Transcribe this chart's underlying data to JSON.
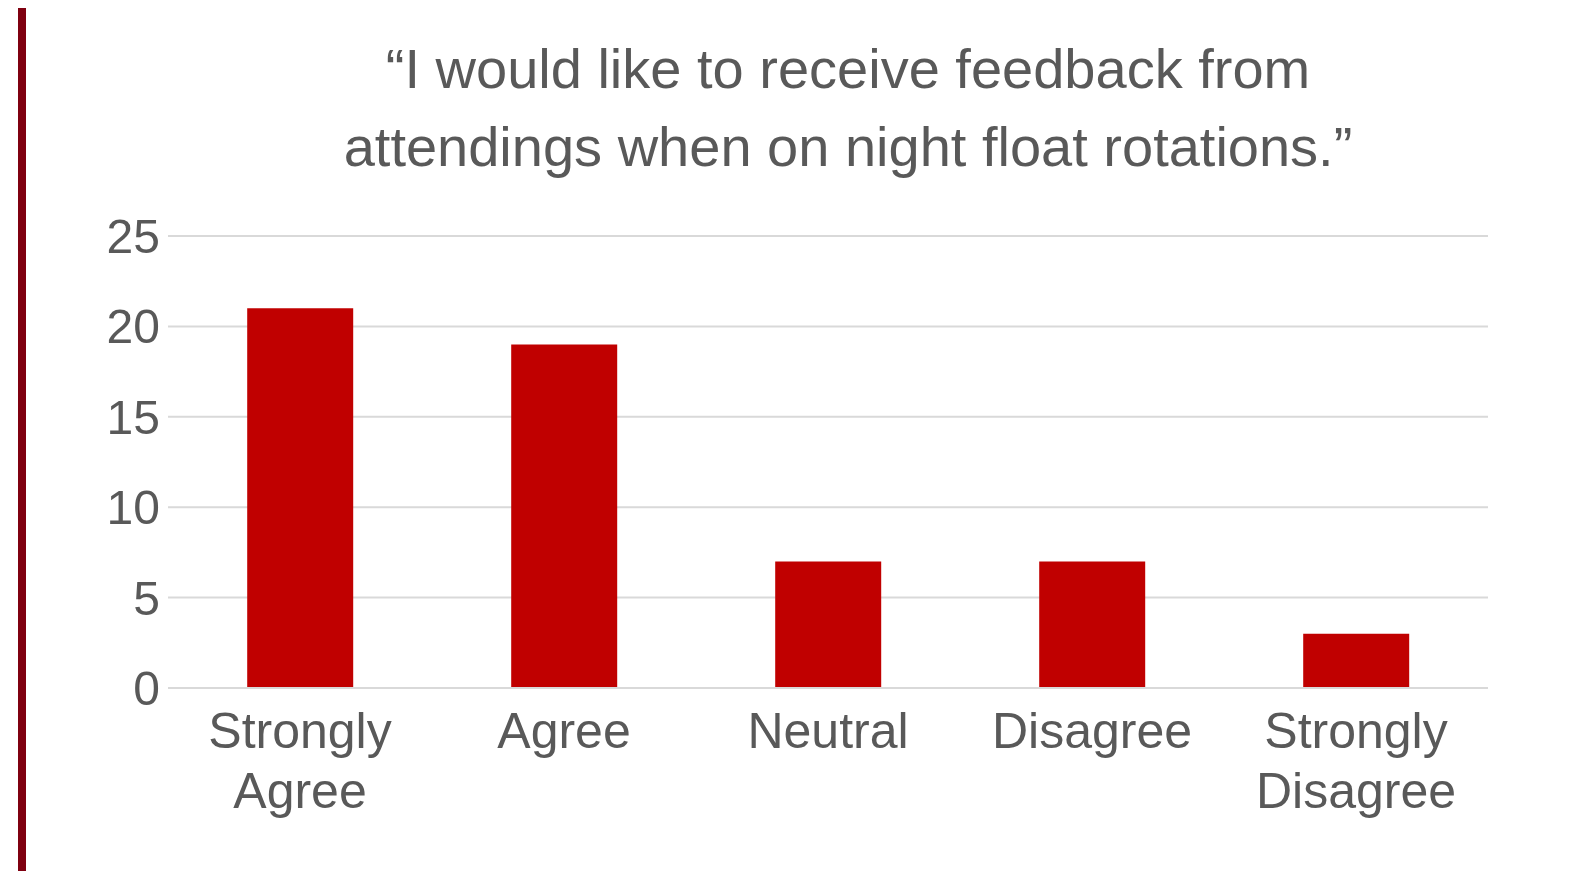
{
  "chart_data": {
    "type": "bar",
    "title": "“I would like to receive feedback from attendings when on night float rotations.”",
    "categories": [
      "Strongly Agree",
      "Agree",
      "Neutral",
      "Disagree",
      "Strongly Disagree"
    ],
    "values": [
      21,
      19,
      7,
      7,
      3
    ],
    "color": "#c00000",
    "ylim": [
      0,
      25
    ],
    "yticks": [
      0,
      5,
      10,
      15,
      20,
      25
    ],
    "grid": "y"
  }
}
